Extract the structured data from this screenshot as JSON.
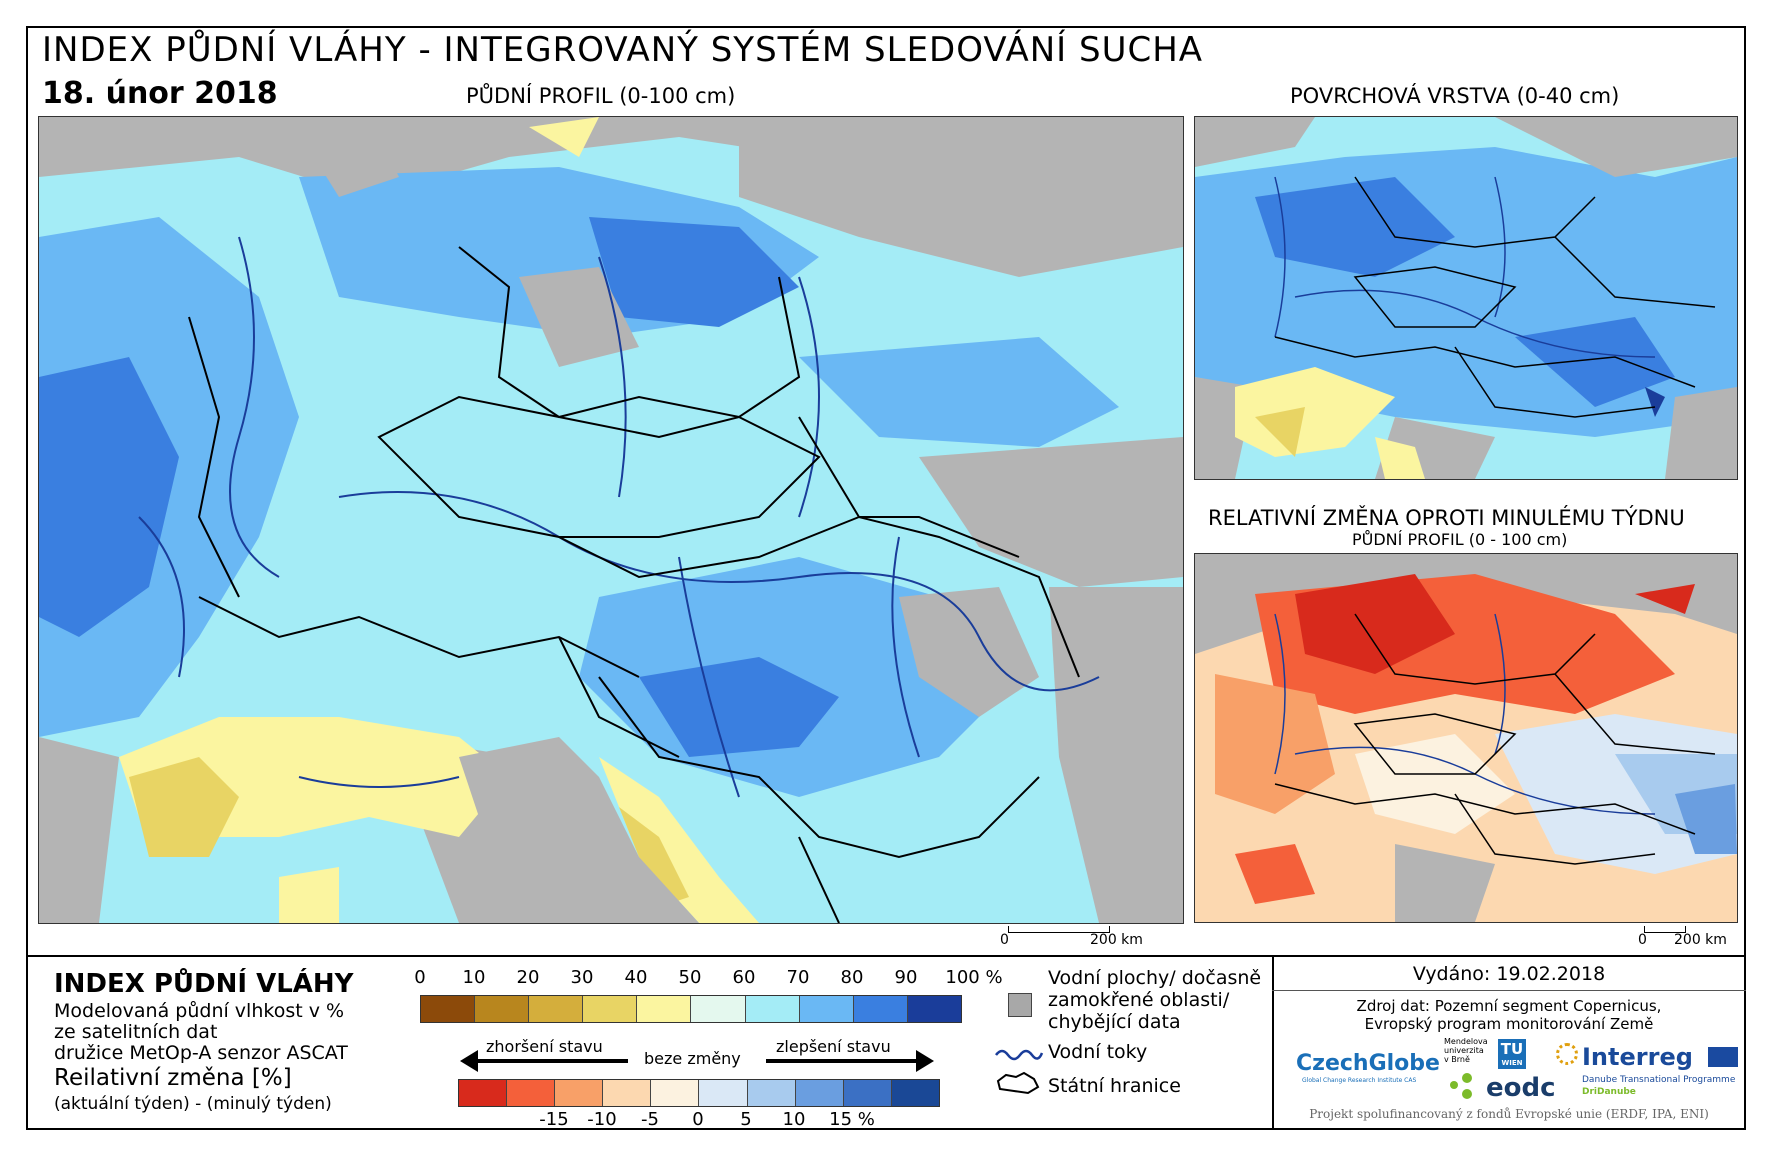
{
  "header": {
    "title": "INDEX PŮDNÍ VLÁHY - INTEGROVANÝ SYSTÉM SLEDOVÁNÍ SUCHA",
    "date": "18. únor 2018"
  },
  "maps": {
    "main_caption": "PŮDNÍ PROFIL (0-100 cm)",
    "surface_caption": "POVRCHOVÁ VRSTVA (0-40 cm)",
    "change_caption": "RELATIVNÍ ZMĚNA OPROTI MINULÉMU TÝDNU",
    "change_subcaption": "PŮDNÍ PROFIL (0 - 100 cm)",
    "scale_main": {
      "zero": "0",
      "end": "200 km"
    },
    "scale_change": {
      "zero": "0",
      "end": "200 km"
    }
  },
  "legend": {
    "title": "INDEX PŮDNÍ VLÁHY",
    "description": "Modelovaná půdní vlhkost v %\nze satelitních dat\ndružice MetOp-A senzor ASCAT",
    "rel_title": "Reilativní změna [%]",
    "rel_subtitle": "(aktuální týden) - (minulý týden)",
    "index_ticks": [
      "0",
      "10",
      "20",
      "30",
      "40",
      "50",
      "60",
      "70",
      "80",
      "90",
      "100 %"
    ],
    "index_colors": [
      "#8c4a0a",
      "#b8861e",
      "#d4ae3c",
      "#e8d464",
      "#fbf5a0",
      "#e4f8ee",
      "#a4ecf6",
      "#6ab8f4",
      "#3a7fe0",
      "#1a3d9a"
    ],
    "change_colors": [
      "#d82a1c",
      "#f4603a",
      "#f8a068",
      "#fcd8b0",
      "#fcf2e0",
      "#dae8f6",
      "#a8cbee",
      "#6a9ee0",
      "#3b70c4",
      "#1a4896"
    ],
    "change_ticks": [
      "-15",
      "-10",
      "-5",
      "0",
      "5",
      "10",
      "15 %"
    ],
    "worse_label": "zhoršení stavu",
    "nochange_label": "beze změny",
    "better_label": "zlepšení stavu",
    "water_label": "Vodní plochy/ dočasně\nzamokřené oblasti/\nchybějící data",
    "rivers_label": "Vodní toky",
    "borders_label": "Státní hranice",
    "gray_color": "#a8a8a8",
    "river_color": "#1a3d9a"
  },
  "info": {
    "issued": "Vydáno: 19.02.2018",
    "source": "Zdroj dat: Pozemní segment Copernicus,\nEvropský program monitorování Země",
    "logo_czechglobe": "CzechGlobe",
    "logo_czechglobe_sub": "Global Change Research Institute CAS",
    "logo_mendel": "Mendelova\nuniverzita\nv Brně",
    "logo_tu": "TU",
    "logo_tu_sub": "WIEN",
    "logo_eodc": "eodc",
    "logo_interreg": "Interreg",
    "logo_interreg_sub": "Danube Transnational Programme",
    "logo_dridanube": "DriDanube",
    "footer": "Projekt spolufinancovaný z fondů Evropské unie (ERDF, IPA, ENI)"
  }
}
